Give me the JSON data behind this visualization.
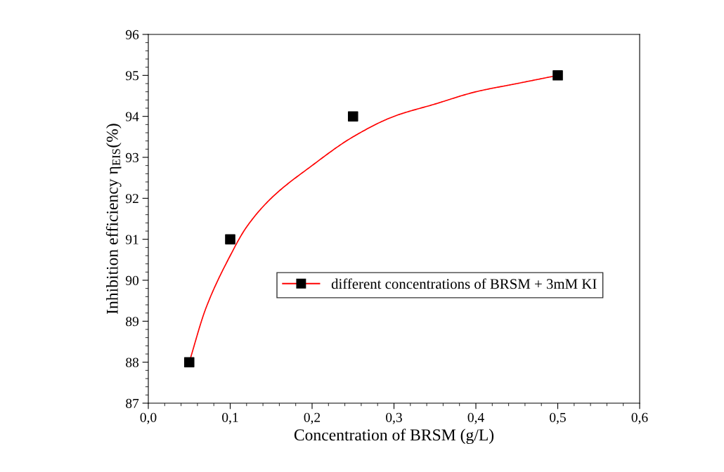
{
  "chart_data": {
    "type": "scatter",
    "xlabel": "Concentration of BRSM (g/L)",
    "ylabel": "Inhibition efficiency η$_{EIS}$(%)",
    "xlim": [
      0,
      0.6
    ],
    "ylim": [
      87,
      96
    ],
    "xticks": [
      {
        "value": 0,
        "label": "0,0"
      },
      {
        "value": 0.1,
        "label": "0,1"
      },
      {
        "value": 0.2,
        "label": "0,2"
      },
      {
        "value": 0.3,
        "label": "0,3"
      },
      {
        "value": 0.4,
        "label": "0,4"
      },
      {
        "value": 0.5,
        "label": "0,5"
      },
      {
        "value": 0.6,
        "label": "0,6"
      }
    ],
    "yticks": [
      87,
      88,
      89,
      90,
      91,
      92,
      93,
      94,
      95,
      96
    ],
    "legend": "right",
    "grid": false,
    "series": [
      {
        "name": "different concentrations of BRSM + 3mM KI",
        "marker": "square",
        "color": "#000000",
        "x": [
          0.05,
          0.1,
          0.25,
          0.5
        ],
        "values": [
          88,
          91,
          94,
          95
        ]
      },
      {
        "type": "line",
        "marker": "none",
        "color": "#ff0000",
        "x": [
          0.05,
          0.07,
          0.1,
          0.12,
          0.15,
          0.2,
          0.25,
          0.3,
          0.35,
          0.4,
          0.45,
          0.5
        ],
        "values": [
          88.0,
          89.3,
          90.6,
          91.3,
          92.0,
          92.8,
          93.5,
          94.0,
          94.3,
          94.6,
          94.8,
          95.0
        ]
      }
    ]
  }
}
